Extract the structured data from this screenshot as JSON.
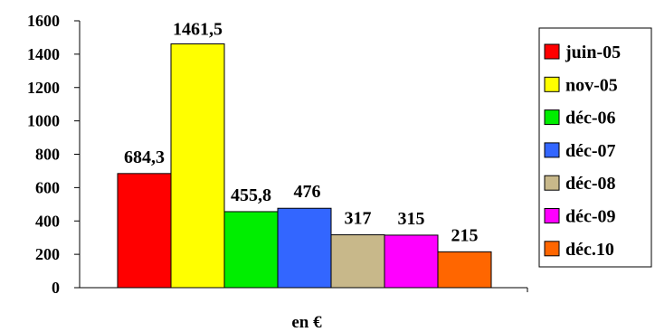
{
  "chart_data": {
    "type": "bar",
    "title": "",
    "xlabel": "en €",
    "ylabel": "",
    "ylim": [
      0,
      1600
    ],
    "yticks": [
      "0",
      "200",
      "400",
      "600",
      "800",
      "1000",
      "1200",
      "1400",
      "1600"
    ],
    "grid": false,
    "legend_position": "right",
    "series": [
      {
        "name": "juin-05",
        "value": 684.3,
        "label": "684,3",
        "color": "#ff0000"
      },
      {
        "name": "nov-05",
        "value": 1461.5,
        "label": "1461,5",
        "color": "#ffff00"
      },
      {
        "name": "déc-06",
        "value": 455.8,
        "label": "455,8",
        "color": "#00ee00"
      },
      {
        "name": "déc-07",
        "value": 476,
        "label": "476",
        "color": "#3366ff"
      },
      {
        "name": "déc-08",
        "value": 317,
        "label": "317",
        "color": "#c8b88a"
      },
      {
        "name": "déc-09",
        "value": 315,
        "label": "315",
        "color": "#ff00ff"
      },
      {
        "name": "déc.10",
        "value": 215,
        "label": "215",
        "color": "#ff6600"
      }
    ]
  }
}
